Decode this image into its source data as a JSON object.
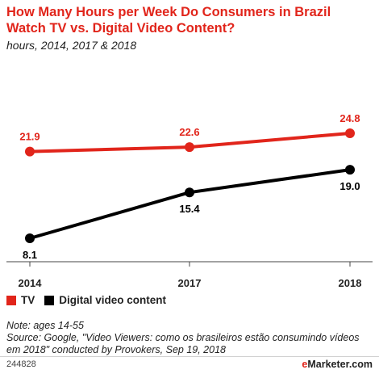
{
  "header": {
    "title": "How Many Hours per Week Do Consumers in Brazil Watch TV vs. Digital Video Content?",
    "subtitle": "hours, 2014, 2017 & 2018"
  },
  "chart_data": {
    "type": "line",
    "title": "How Many Hours per Week Do Consumers in Brazil Watch TV vs. Digital Video Content?",
    "subtitle": "hours, 2014, 2017 & 2018",
    "categories": [
      "2014",
      "2017",
      "2018"
    ],
    "series": [
      {
        "name": "TV",
        "values": [
          21.9,
          22.6,
          24.8
        ],
        "labels": [
          "21.9",
          "22.6",
          "24.8"
        ],
        "color": "#e1251b"
      },
      {
        "name": "Digital video content",
        "values": [
          8.1,
          15.4,
          19.0
        ],
        "labels": [
          "8.1",
          "15.4",
          "19.0"
        ],
        "color": "#000000"
      }
    ],
    "ylim": [
      5,
      27
    ],
    "grid": false,
    "legend": "bottom-left"
  },
  "legend": {
    "items": [
      {
        "label": "TV",
        "color": "#e1251b"
      },
      {
        "label": "Digital video content",
        "color": "#000000"
      }
    ]
  },
  "footer": {
    "note": "Note: ages 14-55",
    "source": "Source: Google, \"Video Viewers: como os brasileiros estão consumindo vídeos em 2018\" conducted by Provokers, Sep 19, 2018",
    "chart_id": "244828",
    "brand_prefix": "e",
    "brand_rest": "Marketer",
    "brand_suffix": ".com"
  }
}
